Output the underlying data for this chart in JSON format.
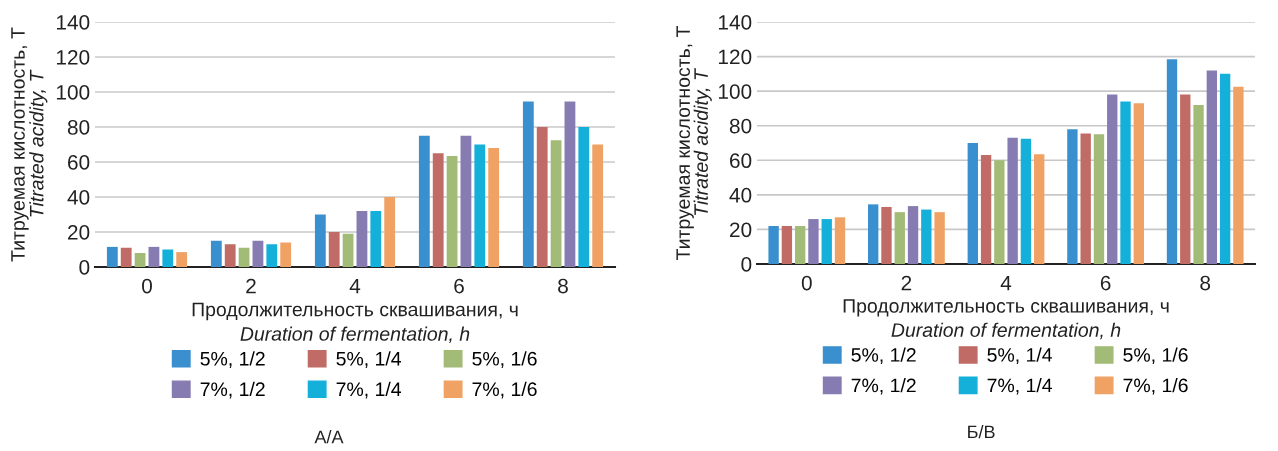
{
  "chart_data": [
    {
      "type": "bar",
      "xlabel": "Продолжительность сквашивания, ч\nDuration of fermentation, h",
      "ylabel": "Титруемая кислотность, Т\nTitrated acidity, T",
      "categories": [
        "0",
        "2",
        "4",
        "6",
        "8"
      ],
      "ylim": [
        0,
        140
      ],
      "yticks": [
        0,
        20,
        40,
        60,
        80,
        100,
        120,
        140
      ],
      "grid": "y",
      "legend": "bottom",
      "annotations": [
        "А/А"
      ],
      "series": [
        {
          "name": "5%, 1/2",
          "color": "#3a8fce",
          "values": [
            11.5,
            15,
            30,
            75,
            94.5
          ]
        },
        {
          "name": "5%, 1/4",
          "color": "#c06b65",
          "values": [
            11,
            13,
            20,
            65,
            80
          ]
        },
        {
          "name": "5%, 1/6",
          "color": "#a2bb76",
          "values": [
            8,
            11,
            19,
            63.5,
            72.5
          ]
        },
        {
          "name": "7%, 1/2",
          "color": "#877cb1",
          "values": [
            11.5,
            15,
            32,
            75,
            94.5
          ]
        },
        {
          "name": "7%, 1/4",
          "color": "#14b0da",
          "values": [
            10,
            13,
            32,
            70,
            80
          ]
        },
        {
          "name": "7%, 1/6",
          "color": "#efa263",
          "values": [
            8.5,
            14,
            40,
            68,
            70
          ]
        }
      ]
    },
    {
      "type": "bar",
      "xlabel": "Продолжительность сквашивания, ч\nDuration of fermentation, h",
      "ylabel": "Титруемая кислотность, Т\nTitrated acidity, T",
      "categories": [
        "0",
        "2",
        "4",
        "6",
        "8"
      ],
      "ylim": [
        0,
        140
      ],
      "yticks": [
        0,
        20,
        40,
        60,
        80,
        100,
        120,
        140
      ],
      "grid": "y",
      "legend": "bottom",
      "annotations": [
        "Б/В"
      ],
      "series": [
        {
          "name": "5%, 1/2",
          "color": "#3a8fce",
          "values": [
            22,
            34.5,
            70,
            78,
            118.5
          ]
        },
        {
          "name": "5%, 1/4",
          "color": "#c06b65",
          "values": [
            22,
            33,
            63,
            75.5,
            98
          ]
        },
        {
          "name": "5%, 1/6",
          "color": "#a2bb76",
          "values": [
            22,
            30,
            60,
            75,
            92
          ]
        },
        {
          "name": "7%, 1/2",
          "color": "#877cb1",
          "values": [
            26,
            33.5,
            73,
            98,
            112
          ]
        },
        {
          "name": "7%, 1/4",
          "color": "#14b0da",
          "values": [
            26,
            31.5,
            72.5,
            94,
            110
          ]
        },
        {
          "name": "7%, 1/6",
          "color": "#efa263",
          "values": [
            27,
            30,
            63.5,
            93,
            102.5
          ]
        }
      ]
    }
  ]
}
